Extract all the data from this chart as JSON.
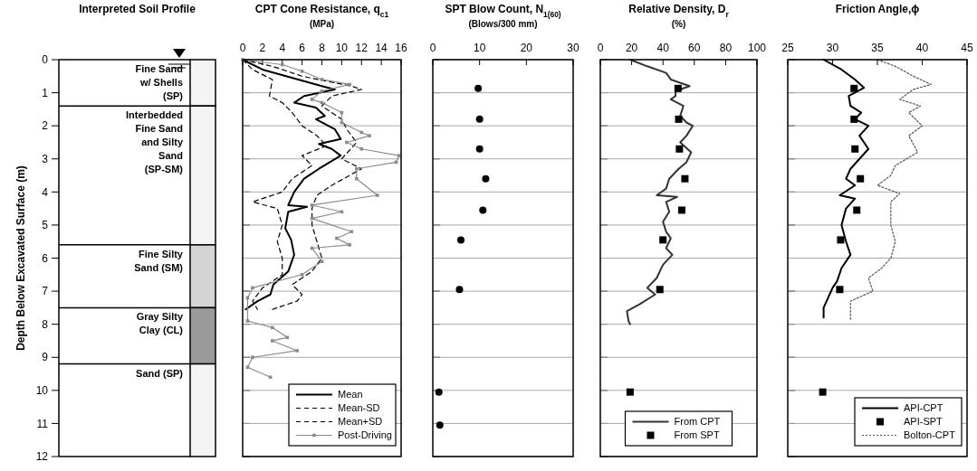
{
  "chart_data": [
    {
      "type": "bar",
      "stacked": true,
      "title": "Interpreted Soil Profile",
      "ylabel": "Depth Below Excavated Surface (m)",
      "categories": [
        null
      ],
      "ylim": [
        12,
        0
      ],
      "yticks": [
        0,
        1,
        2,
        3,
        4,
        5,
        6,
        7,
        8,
        9,
        10,
        11,
        12
      ],
      "series": [
        {
          "name": "Fine Sand w/ Shells (SP)",
          "color": "#f4f4f4",
          "values": [
            1.4
          ]
        },
        {
          "name": "Interbedded Fine Sand and Silty Sand (SP-SM)",
          "color": "#f4f4f4",
          "values": [
            4.2
          ]
        },
        {
          "name": "Fine Silty Sand (SM)",
          "color": "#d4d4d4",
          "values": [
            1.9
          ]
        },
        {
          "name": "Gray Silty Clay (CL)",
          "color": "#9a9a9a",
          "values": [
            1.7
          ]
        },
        {
          "name": "Sand (SP)",
          "color": "#f4f4f4",
          "values": [
            2.8
          ]
        }
      ]
    },
    {
      "type": "line",
      "title": "CPT Cone Resistance, q$_{c1}$",
      "xlabel": "(MPa)",
      "xlim": [
        0,
        16
      ],
      "xticks": [
        0,
        2,
        4,
        6,
        8,
        10,
        12,
        14,
        16
      ],
      "ylim": [
        12,
        0
      ],
      "yticks": [
        0,
        1,
        2,
        3,
        4,
        5,
        6,
        7,
        8,
        9,
        10,
        11,
        12
      ],
      "tick_labels": "x",
      "grid": "y",
      "legend": "bottom right",
      "series": [
        {
          "name": "Mean",
          "color": "#000000",
          "line_style": "solid",
          "x": [
            0,
            2,
            8,
            9.3,
            6.2,
            5.2,
            7.4,
            8.3,
            7.4,
            9.3,
            9.9,
            7.7,
            9,
            9.9,
            7.7,
            6.2,
            5.2,
            4.6,
            6.5,
            4.6,
            4.3,
            4.9,
            5.2,
            4.6,
            3.1,
            2.8,
            1.5,
            0.3
          ],
          "values": [
            0,
            0.3,
            0.8,
            0.9,
            1.1,
            1.3,
            1.45,
            1.7,
            1.8,
            2.1,
            2.4,
            2.55,
            2.7,
            2.9,
            3.3,
            3.6,
            4,
            4.4,
            4.45,
            4.6,
            5.1,
            5.45,
            5.9,
            6.4,
            6.8,
            7.1,
            7.3,
            7.55
          ]
        },
        {
          "name": "Mean-SD",
          "color": "#000000",
          "line_style": "dashed",
          "x": [
            0,
            1,
            3,
            2.7,
            4,
            5,
            6,
            7.5,
            8.5,
            6,
            7,
            5,
            4,
            1,
            3.5,
            4,
            3.5,
            4,
            4,
            2,
            1,
            1.5
          ],
          "values": [
            0,
            0.3,
            0.6,
            1.1,
            1.3,
            1.6,
            2,
            2.3,
            2.6,
            2.9,
            3.2,
            3.6,
            4,
            4.3,
            4.5,
            5,
            5.5,
            6,
            6.5,
            6.9,
            7.3,
            7.55
          ]
        },
        {
          "name": "Mean+SD",
          "color": "#000000",
          "line_style": "dashed",
          "x": [
            0,
            3,
            6,
            11,
            12,
            9,
            8,
            10,
            10.5,
            11.5,
            10,
            12,
            9,
            7.5,
            7,
            7,
            7.5,
            8,
            7,
            5,
            6,
            5.5,
            3
          ],
          "values": [
            0,
            0.2,
            0.5,
            0.8,
            0.9,
            1.1,
            1.4,
            1.8,
            2.1,
            2.5,
            3,
            3.3,
            3.8,
            4.1,
            4.5,
            5,
            5.5,
            6,
            6.4,
            6.8,
            7.1,
            7.3,
            7.55
          ]
        },
        {
          "name": "Post-Driving",
          "color": "#8c8c8c",
          "line_style": "solid",
          "marker": "square",
          "x": [
            0,
            4,
            6,
            8,
            10.8,
            8,
            7,
            8,
            10,
            10,
            12,
            12.8,
            10.5,
            12,
            15.8,
            15.5,
            11.5,
            11.5,
            13.6,
            7,
            10,
            7,
            11,
            9.5,
            10.8,
            7,
            8,
            6,
            1,
            0.5,
            0.5,
            3,
            4.5,
            3,
            5.5,
            1,
            0.5,
            2.8
          ],
          "values": [
            0,
            0.15,
            0.35,
            0.6,
            0.75,
            0.95,
            1.2,
            1.3,
            1.6,
            1.9,
            2.2,
            2.3,
            2.5,
            2.7,
            2.9,
            3.1,
            3.3,
            3.6,
            4.1,
            4.4,
            4.6,
            4.8,
            5.2,
            5.4,
            5.6,
            5.7,
            6.1,
            6.5,
            6.9,
            7.2,
            7.9,
            8.1,
            8.4,
            8.5,
            8.8,
            9,
            9.3,
            9.6
          ]
        }
      ]
    },
    {
      "type": "scatter",
      "title": "SPT Blow Count, N$_{1(60)}$",
      "xlabel": "(Blows/300 mm)",
      "xlim": [
        0,
        30
      ],
      "xticks": [
        0,
        10,
        20,
        30
      ],
      "ylim": [
        12,
        0
      ],
      "yticks": [
        0,
        1,
        2,
        3,
        4,
        5,
        6,
        7,
        8,
        9,
        10,
        11,
        12
      ],
      "tick_labels": "x",
      "grid": "y",
      "marker": "circle",
      "series": [
        {
          "color": "#000000",
          "x": [
            9.7,
            10,
            10,
            11.3,
            10.7,
            6,
            5.7,
            1.3,
            1.5
          ],
          "values": [
            0.87,
            1.8,
            2.7,
            3.6,
            4.55,
            5.45,
            6.95,
            10.05,
            11.05
          ]
        }
      ]
    },
    {
      "type": "line",
      "title": "Relative Density, D$_{r}$",
      "xlabel": "(%)",
      "xlim": [
        0,
        100
      ],
      "xticks": [
        0,
        20,
        40,
        60,
        80,
        100
      ],
      "ylim": [
        12,
        0
      ],
      "yticks": [
        0,
        1,
        2,
        3,
        4,
        5,
        6,
        7,
        8,
        9,
        10,
        11,
        12
      ],
      "tick_labels": "x",
      "grid": "y",
      "legend": "bottom",
      "series": [
        {
          "name": "From CPT",
          "color": "#333333",
          "line_style": "solid",
          "x": [
            19,
            30,
            42,
            45,
            57,
            48,
            48,
            45,
            53,
            51,
            55,
            59,
            55,
            51,
            58,
            55,
            50,
            44,
            42,
            36,
            49,
            42,
            44,
            40,
            42,
            45,
            42,
            46,
            40,
            36,
            30,
            35,
            25,
            17,
            18,
            19
          ],
          "values": [
            0,
            0.2,
            0.4,
            0.6,
            0.8,
            0.95,
            1.1,
            1.2,
            1.4,
            1.7,
            1.9,
            2,
            2.3,
            2.5,
            2.8,
            3.1,
            3.3,
            3.6,
            3.9,
            4.1,
            4.15,
            4.3,
            4.6,
            4.9,
            5.2,
            5.4,
            5.7,
            5.9,
            6.2,
            6.6,
            6.9,
            7.1,
            7.4,
            7.6,
            7.9,
            8
          ]
        },
        {
          "name": "From SPT",
          "type": "scatter",
          "marker": "square",
          "color": "#000000",
          "x": [
            49.6,
            50,
            50.5,
            54,
            52,
            40,
            38,
            19
          ],
          "values": [
            0.87,
            1.8,
            2.7,
            3.6,
            4.55,
            5.45,
            6.95,
            10.05
          ]
        }
      ]
    },
    {
      "type": "line",
      "title": "Friction Angle,ϕ",
      "xlim": [
        25,
        45
      ],
      "xticks": [
        25,
        30,
        35,
        40,
        45
      ],
      "ylim": [
        12,
        0
      ],
      "yticks": [
        0,
        1,
        2,
        3,
        4,
        5,
        6,
        7,
        8,
        9,
        10,
        11,
        12
      ],
      "tick_labels": "x",
      "grid": "y",
      "legend": "bottom right",
      "series": [
        {
          "name": "API-CPT",
          "color": "#000000",
          "line_style": "solid",
          "x": [
            29,
            31,
            32.5,
            33.5,
            31.8,
            32,
            33.2,
            32.5,
            34,
            33,
            34,
            33,
            32,
            31.5,
            32.5,
            30.8,
            32.5,
            31.5,
            31,
            31.5,
            32,
            31,
            30.5,
            30,
            29.5,
            29,
            29
          ],
          "values": [
            0,
            0.3,
            0.6,
            0.85,
            1.1,
            1.4,
            1.6,
            1.8,
            2,
            2.3,
            2.7,
            3,
            3.3,
            3.6,
            3.8,
            4.1,
            4.2,
            4.5,
            5,
            5.5,
            5.9,
            6.3,
            6.7,
            6.9,
            7.2,
            7.5,
            7.8
          ]
        },
        {
          "name": "API-SPT",
          "type": "scatter",
          "marker": "square",
          "color": "#000000",
          "x": [
            32.4,
            32.4,
            32.5,
            33.1,
            32.7,
            30.9,
            30.8,
            28.9
          ],
          "values": [
            0.87,
            1.8,
            2.7,
            3.6,
            4.55,
            5.45,
            6.95,
            10.05
          ]
        },
        {
          "name": "Bolton-CPT",
          "color": "#555555",
          "line_style": "dotted",
          "x": [
            35,
            37,
            39,
            41,
            39,
            37.5,
            39.8,
            38.5,
            40,
            38.5,
            39.5,
            37,
            36.5,
            35,
            37.5,
            36.5,
            36.5,
            37,
            36.5,
            35.5,
            34,
            34.5,
            32,
            32
          ],
          "values": [
            0,
            0.2,
            0.5,
            0.75,
            0.9,
            1.2,
            1.4,
            1.6,
            2,
            2.3,
            2.8,
            3.2,
            3.5,
            3.8,
            4.05,
            4.3,
            5,
            5.5,
            6,
            6.3,
            6.6,
            7,
            7.3,
            7.9
          ]
        }
      ]
    }
  ]
}
